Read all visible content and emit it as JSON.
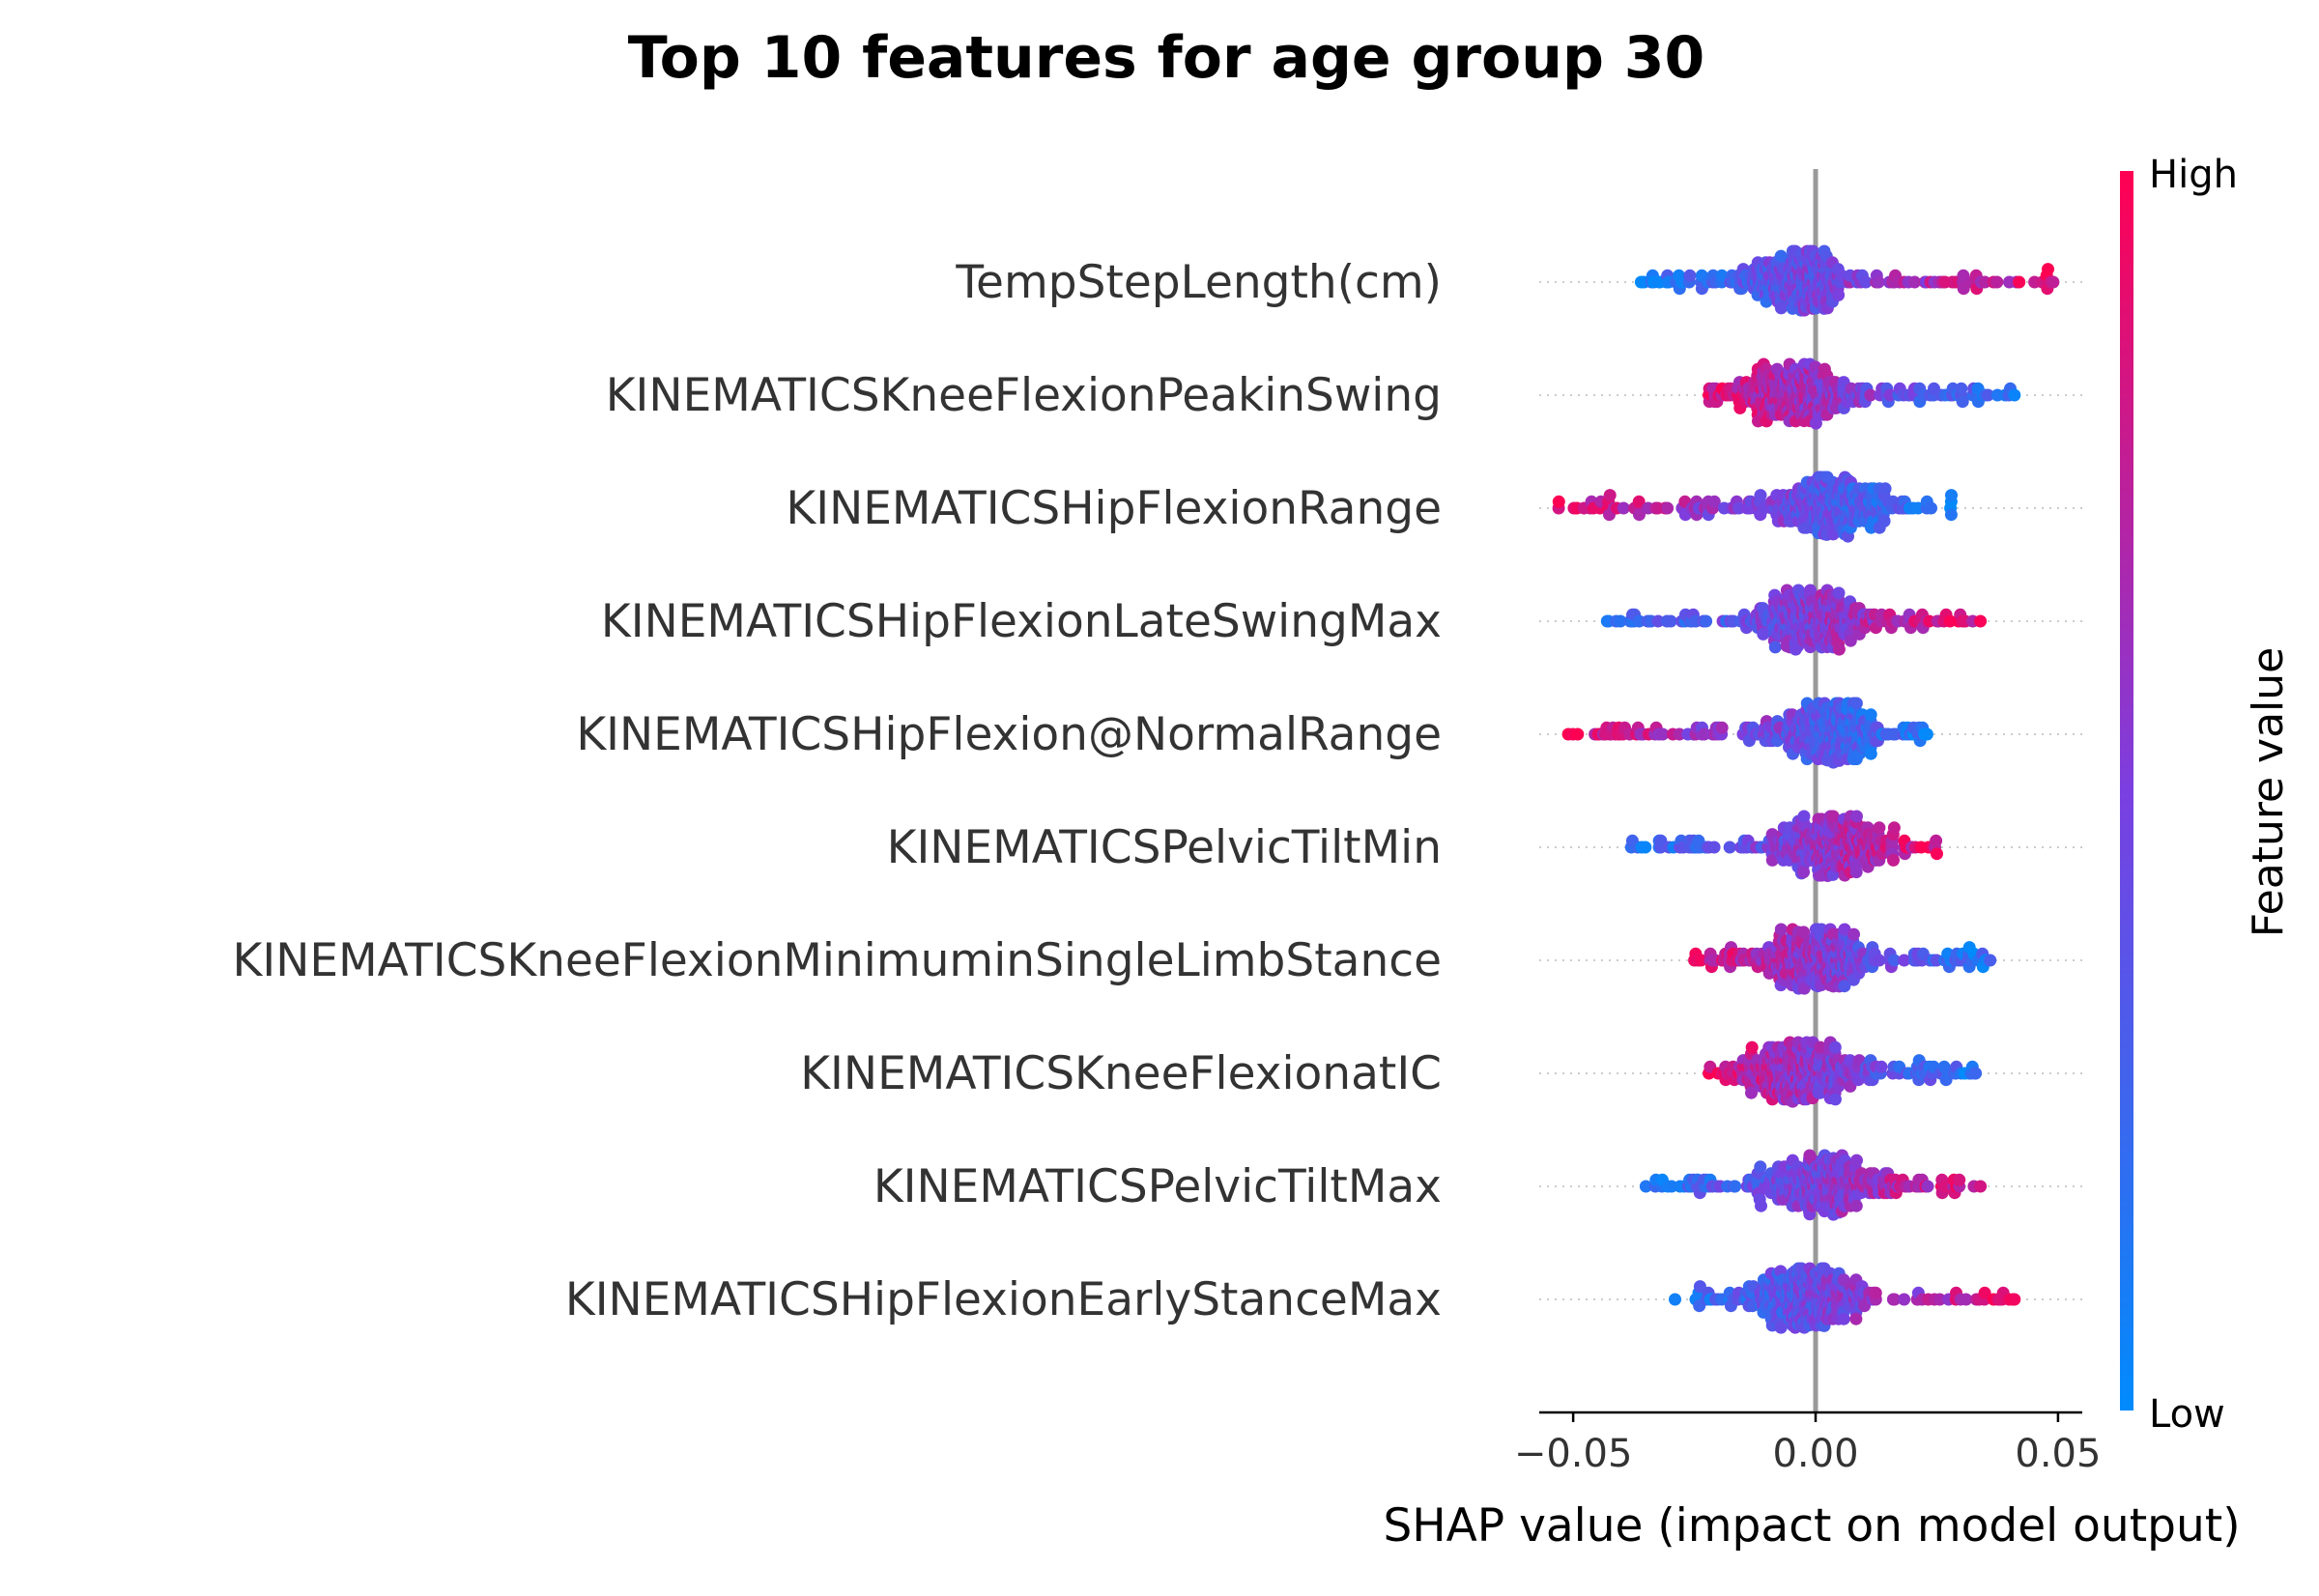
{
  "chart_data": {
    "type": "scatter",
    "subtype": "shap-beeswarm",
    "title": "Top 10 features for age group 30",
    "xlabel": "SHAP value (impact on model output)",
    "xlim": [
      -0.057,
      0.055
    ],
    "xticks": [
      -0.05,
      0.0,
      0.05
    ],
    "xtick_labels": [
      "−0.05",
      "0.00",
      "0.05"
    ],
    "zero_line": true,
    "colorbar": {
      "title": "Feature value",
      "high_label": "High",
      "low_label": "Low",
      "high_color": "#ff0052",
      "mid_color": "#7b3fe0",
      "low_color": "#008bfb"
    },
    "features": [
      {
        "name": "TempStepLength(cm)",
        "min": -0.036,
        "max": 0.049,
        "center": -0.004,
        "pattern": "low_left_high_right"
      },
      {
        "name": "KINEMATICSKneeFlexionPeakinSwing",
        "min": -0.022,
        "max": 0.041,
        "center": -0.004,
        "pattern": "high_left_low_right"
      },
      {
        "name": "KINEMATICSHipFlexionRange",
        "min": -0.053,
        "max": 0.028,
        "center": 0.003,
        "pattern": "high_left_low_right"
      },
      {
        "name": "KINEMATICSHipFlexionLateSwingMax",
        "min": -0.043,
        "max": 0.034,
        "center": -0.001,
        "pattern": "low_left_high_right"
      },
      {
        "name": "KINEMATICSHipFlexion@NormalRange",
        "min": -0.051,
        "max": 0.023,
        "center": 0.003,
        "pattern": "high_left_low_right"
      },
      {
        "name": "KINEMATICSPelvicTiltMin",
        "min": -0.038,
        "max": 0.025,
        "center": 0.003,
        "pattern": "low_left_high_right"
      },
      {
        "name": "KINEMATICSKneeFlexionMinimuminSingleLimbStance",
        "min": -0.025,
        "max": 0.036,
        "center": -0.001,
        "pattern": "high_left_low_right"
      },
      {
        "name": "KINEMATICSKneeFlexionatIC",
        "min": -0.022,
        "max": 0.033,
        "center": -0.003,
        "pattern": "high_left_low_right"
      },
      {
        "name": "KINEMATICSPelvicTiltMax",
        "min": -0.035,
        "max": 0.034,
        "center": 0.0,
        "pattern": "low_left_high_right"
      },
      {
        "name": "KINEMATICSHipFlexionEarlyStanceMax",
        "min": -0.029,
        "max": 0.041,
        "center": -0.001,
        "pattern": "low_left_high_right"
      }
    ]
  }
}
